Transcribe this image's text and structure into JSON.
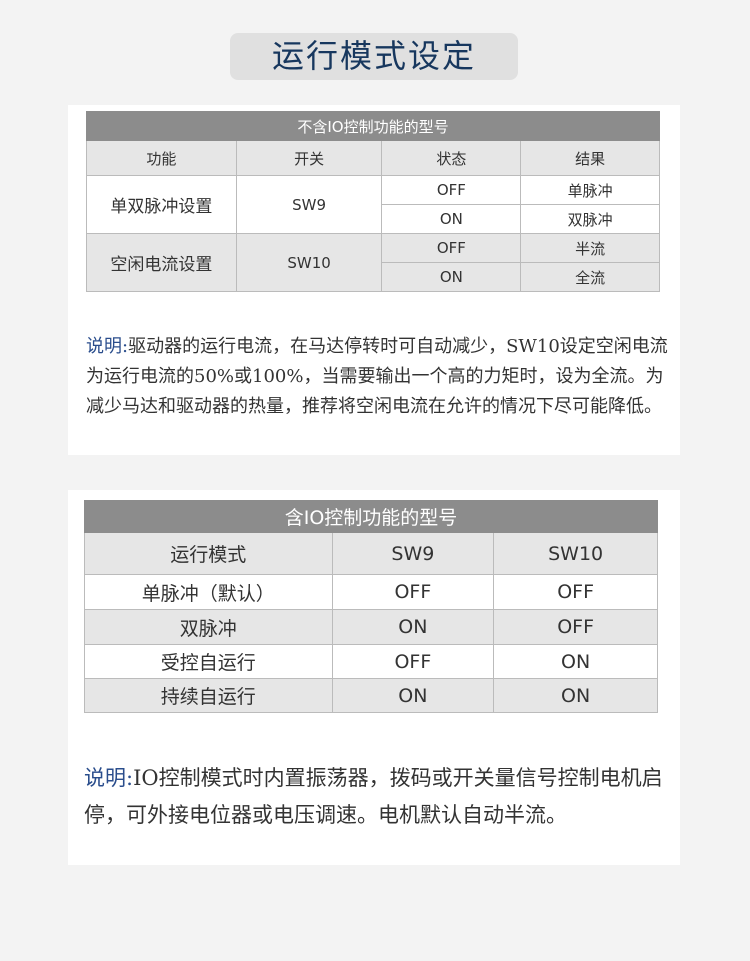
{
  "title": "运行模式设定",
  "table1": {
    "caption": "不含IO控制功能的型号",
    "headers": [
      "功能",
      "开关",
      "状态",
      "结果"
    ],
    "groups": [
      {
        "function": "单双脉冲设置",
        "switch": "SW9",
        "rows": [
          {
            "state": "OFF",
            "result": "单脉冲"
          },
          {
            "state": "ON",
            "result": "双脉冲"
          }
        ]
      },
      {
        "function": "空闲电流设置",
        "switch": "SW10",
        "rows": [
          {
            "state": "OFF",
            "result": "半流"
          },
          {
            "state": "ON",
            "result": "全流"
          }
        ]
      }
    ]
  },
  "note1": {
    "label": "说明:",
    "text": "驱动器的运行电流，在马达停转时可自动减少，SW10设定空闲电流为运行电流的50%或100%，当需要输出一个高的力矩时，设为全流。为减少马达和驱动器的热量，推荐将空闲电流在允许的情况下尽可能降低。"
  },
  "table2": {
    "caption": "含IO控制功能的型号",
    "headers": [
      "运行模式",
      "SW9",
      "SW10"
    ],
    "rows": [
      [
        "单脉冲（默认）",
        "OFF",
        "OFF"
      ],
      [
        "双脉冲",
        "ON",
        "OFF"
      ],
      [
        "受控自运行",
        "OFF",
        "ON"
      ],
      [
        "持续自运行",
        "ON",
        "ON"
      ]
    ]
  },
  "note2": {
    "label": "说明:",
    "text": "IO控制模式时内置振荡器，拨码或开关量信号控制电机启停，可外接电位器或电压调速。电机默认自动半流。"
  }
}
